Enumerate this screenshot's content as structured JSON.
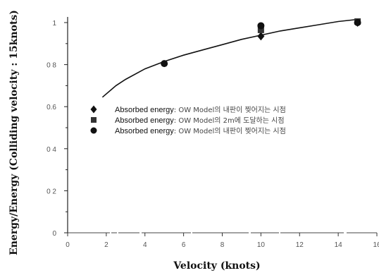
{
  "chart_data": {
    "type": "scatter",
    "xlabel": "Velocity (knots)",
    "ylabel": "Energy/Energy (Colliding velocity : 15knots)",
    "xlim": [
      0,
      16
    ],
    "ylim": [
      0,
      1.0
    ],
    "x_ticks": [
      "0",
      "2",
      "4",
      "6",
      "8",
      "10",
      "12",
      "14",
      "16"
    ],
    "y_ticks": [
      "0",
      "0 2",
      "0 4",
      "0.6",
      "0 8",
      "1"
    ],
    "grid": false,
    "legend_position": "center-left",
    "series": [
      {
        "legend_main": "Absorbed energy",
        "legend_rest": ": OW Model의 내판이 찢어지는 시점",
        "marker": "diamond",
        "points": [
          [
            10,
            0.935
          ],
          [
            15,
            1.0
          ]
        ]
      },
      {
        "legend_main": "Absorbed energy",
        "legend_rest": ": OW Model의 2m에 도달하는 시점",
        "marker": "square",
        "points": [
          [
            10,
            0.965
          ],
          [
            15,
            1.005
          ]
        ]
      },
      {
        "legend_main": "Absorbed energy",
        "legend_rest": ": OW Model의 내판이 찢어지는 시점",
        "marker": "circle",
        "points": [
          [
            5,
            0.805
          ],
          [
            10,
            0.985
          ],
          [
            15,
            1.0
          ]
        ]
      }
    ],
    "fit_curve": {
      "x": [
        1.8,
        2.5,
        3,
        4,
        5,
        6,
        7,
        8,
        9,
        10,
        11,
        12,
        13,
        14,
        15
      ],
      "y": [
        0.645,
        0.7,
        0.73,
        0.78,
        0.815,
        0.845,
        0.87,
        0.895,
        0.92,
        0.94,
        0.96,
        0.975,
        0.99,
        1.005,
        1.015
      ]
    }
  }
}
